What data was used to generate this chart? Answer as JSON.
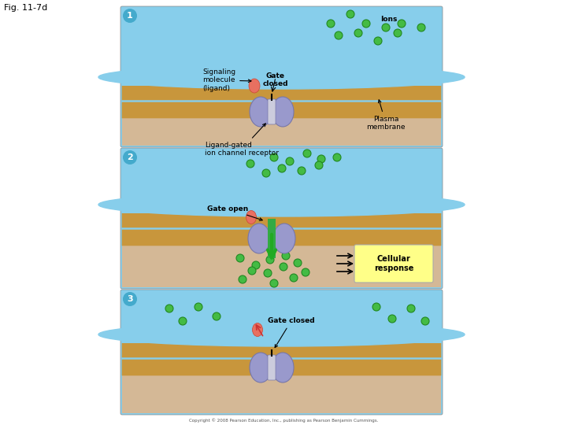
{
  "fig_label": "Fig. 11-7d",
  "bg_color": "#ffffff",
  "panel_bg_top": "#87ceeb",
  "panel_bg_bottom": "#d4b896",
  "receptor_color": "#9999cc",
  "receptor_dark": "#7777aa",
  "ligand_color": "#e87060",
  "ion_color": "#44bb44",
  "ion_stroke": "#228822",
  "membrane_stripe": "#c8963c",
  "green_arrow": "#22aa22",
  "yellow_box": "#ffff88",
  "badge_color": "#44aacc",
  "copyright": "Copyright © 2008 Pearson Education, Inc., publishing as Pearson Benjamin Cummings.",
  "panel1": {
    "label": "1",
    "text_signaling": "Signaling\nmolecule\n(ligand)",
    "text_gate": "Gate\nclosed",
    "text_ions": "Ions",
    "text_receptor": "Ligand-gated\nion channel receptor",
    "text_plasma": "Plasma\nmembrane"
  },
  "panel2": {
    "label": "2",
    "text_gate": "Gate open",
    "text_cellular": "Cellular\nresponse"
  },
  "panel3": {
    "label": "3",
    "text_gate": "Gate closed"
  }
}
